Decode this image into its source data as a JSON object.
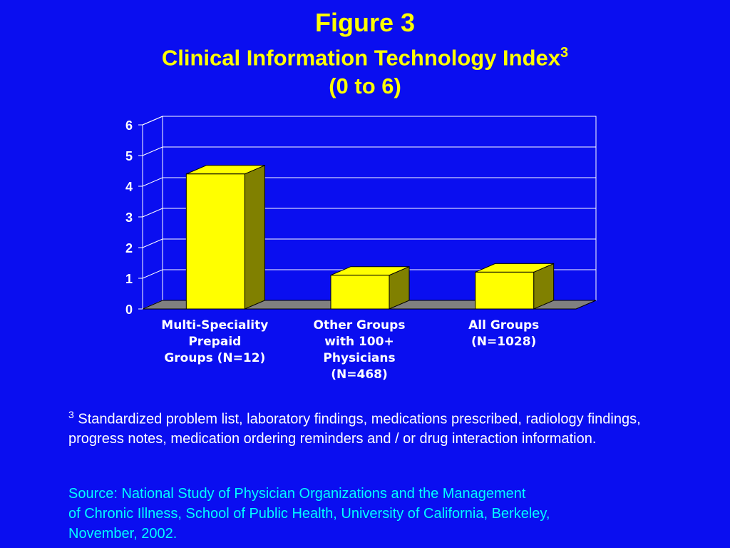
{
  "header": {
    "title": "Figure 3",
    "subtitle": "Clinical Information Technology Index",
    "subtitle_sup": "3",
    "range": "(0 to 6)"
  },
  "chart_data": {
    "type": "bar",
    "categories": [
      [
        "Multi-Speciality",
        "Prepaid",
        "Groups (N=12)"
      ],
      [
        "Other Groups",
        "with 100+",
        "Physicians",
        "(N=468)"
      ],
      [
        "All Groups",
        "(N=1028)"
      ]
    ],
    "values": [
      4.4,
      1.1,
      1.2
    ],
    "ylim": [
      0,
      6
    ],
    "yticks": [
      "0",
      "1",
      "2",
      "3",
      "4",
      "5",
      "6"
    ],
    "grid": true,
    "colors": {
      "bar_front": "#ffff00",
      "bar_side": "#808000",
      "floor": "#808080",
      "grid": "#ffffff",
      "tick_text": "#ffffff"
    }
  },
  "footnote": {
    "marker": "3",
    "text": "Standardized problem list, laboratory findings, medications prescribed, radiology findings, progress notes, medication ordering reminders and / or drug interaction information."
  },
  "source": {
    "lines": [
      "Source:  National Study of Physician Organizations and the Management",
      "of Chronic Illness, School of Public Health, University of California, Berkeley,",
      "November, 2002."
    ]
  },
  "colors": {
    "background": "#0a0ef0",
    "title": "#ffff00",
    "footnote": "#ffffff",
    "source": "#00ffff"
  }
}
